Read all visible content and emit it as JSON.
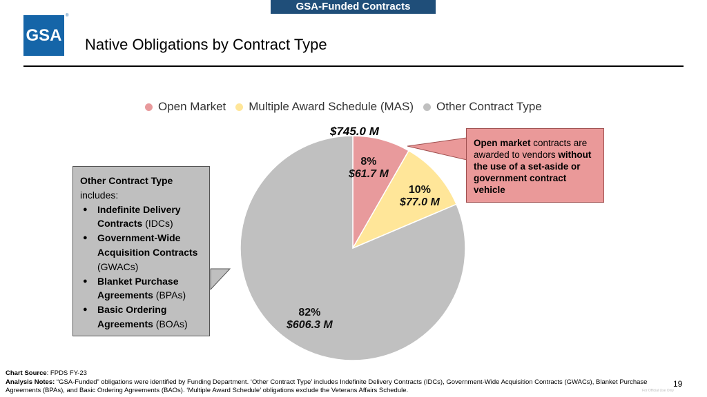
{
  "header": {
    "banner": "GSA-Funded Contracts",
    "logo": "GSA",
    "title": "Native Obligations by Contract Type"
  },
  "chart_data": {
    "type": "pie",
    "title": "",
    "total_label": "$745.0 M",
    "legend_position": "top",
    "slices": [
      {
        "name": "Open Market",
        "value": 61.7,
        "percent_label": "8%",
        "value_label": "$61.7 M",
        "color": "#e89a9c"
      },
      {
        "name": "Multiple Award Schedule (MAS)",
        "value": 77.0,
        "percent_label": "10%",
        "value_label": "$77.0 M",
        "color": "#ffe699"
      },
      {
        "name": "Other Contract Type",
        "value": 606.3,
        "percent_label": "82%",
        "value_label": "$606.3 M",
        "color": "#c0c0c0"
      }
    ]
  },
  "callouts": {
    "left": {
      "title": "Other Contract Type",
      "intro": "includes:",
      "items": [
        {
          "bold": "Indefinite Delivery Contracts",
          "rest": " (IDCs)"
        },
        {
          "bold": "Government-Wide Acquisition Contracts",
          "rest": " (GWACs)"
        },
        {
          "bold": "Blanket Purchase Agreements",
          "rest": " (BPAs)"
        },
        {
          "bold": "Basic Ordering Agreements",
          "rest": " (BOAs)"
        }
      ]
    },
    "right": {
      "b1": "Open market",
      "t1": " contracts are awarded to vendors ",
      "b2": "without the use of a set-aside or government contract vehicle"
    }
  },
  "footer": {
    "source_label": "Chart Source",
    "source": ": FPDS FY-23",
    "notes_label": "Analysis Notes:",
    "notes": " “GSA-Funded” obligations were identified by Funding Department. ‘Other Contract Type’ includes Indefinite Delivery Contracts (IDCs), Government-Wide Acquisition Contracts (GWACs), Blanket Purchase Agreements (BPAs), and Basic Ordering Agreements (BAOs). ‘Multiple Award Schedule’ obligations exclude the Veterans Affairs Schedule.",
    "page": "19",
    "marking": "For Official Use Only"
  }
}
